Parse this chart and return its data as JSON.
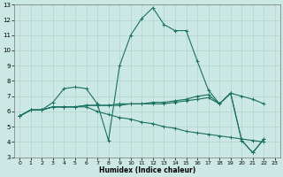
{
  "xlabel": "Humidex (Indice chaleur)",
  "bg_color": "#cce8e4",
  "grid_color": "#b0d4cc",
  "line_color": "#1a7060",
  "xlim": [
    -0.5,
    23.5
  ],
  "ylim": [
    3,
    13
  ],
  "xticks": [
    0,
    1,
    2,
    3,
    4,
    5,
    6,
    7,
    8,
    9,
    10,
    11,
    12,
    13,
    14,
    15,
    16,
    17,
    18,
    19,
    20,
    21,
    22,
    23
  ],
  "yticks": [
    3,
    4,
    5,
    6,
    7,
    8,
    9,
    10,
    11,
    12,
    13
  ],
  "lines": [
    {
      "x": [
        0,
        1,
        2,
        3,
        4,
        5,
        6,
        7,
        8,
        9,
        10,
        11,
        12,
        13,
        14,
        15,
        16,
        17,
        18,
        19,
        20,
        21,
        22
      ],
      "y": [
        5.7,
        6.1,
        6.1,
        6.6,
        7.5,
        7.6,
        7.5,
        6.5,
        4.1,
        9.0,
        11.0,
        12.1,
        12.8,
        11.7,
        11.3,
        11.3,
        9.3,
        7.4,
        6.5,
        7.2,
        4.1,
        3.3,
        4.2
      ]
    },
    {
      "x": [
        0,
        1,
        2,
        3,
        4,
        5,
        6,
        7,
        8,
        9,
        10,
        11,
        12,
        13,
        14,
        15,
        16,
        17,
        18,
        19,
        20,
        21,
        22
      ],
      "y": [
        5.7,
        6.1,
        6.1,
        6.3,
        6.3,
        6.3,
        6.4,
        6.4,
        6.4,
        6.4,
        6.5,
        6.5,
        6.5,
        6.5,
        6.6,
        6.7,
        6.8,
        6.9,
        6.5,
        7.2,
        4.1,
        3.3,
        4.2
      ]
    },
    {
      "x": [
        0,
        1,
        2,
        3,
        4,
        5,
        6,
        7,
        8,
        9,
        10,
        11,
        12,
        13,
        14,
        15,
        16,
        17,
        18,
        19,
        20,
        21,
        22
      ],
      "y": [
        5.7,
        6.1,
        6.1,
        6.3,
        6.3,
        6.3,
        6.4,
        6.4,
        6.4,
        6.5,
        6.5,
        6.5,
        6.6,
        6.6,
        6.7,
        6.8,
        7.0,
        7.1,
        6.5,
        7.2,
        7.0,
        6.8,
        6.5
      ]
    },
    {
      "x": [
        0,
        1,
        2,
        3,
        4,
        5,
        6,
        7,
        8,
        9,
        10,
        11,
        12,
        13,
        14,
        15,
        16,
        17,
        18,
        19,
        20,
        21,
        22
      ],
      "y": [
        5.7,
        6.1,
        6.1,
        6.3,
        6.3,
        6.3,
        6.3,
        6.0,
        5.8,
        5.6,
        5.5,
        5.3,
        5.2,
        5.0,
        4.9,
        4.7,
        4.6,
        4.5,
        4.4,
        4.3,
        4.2,
        4.1,
        4.0
      ]
    }
  ]
}
